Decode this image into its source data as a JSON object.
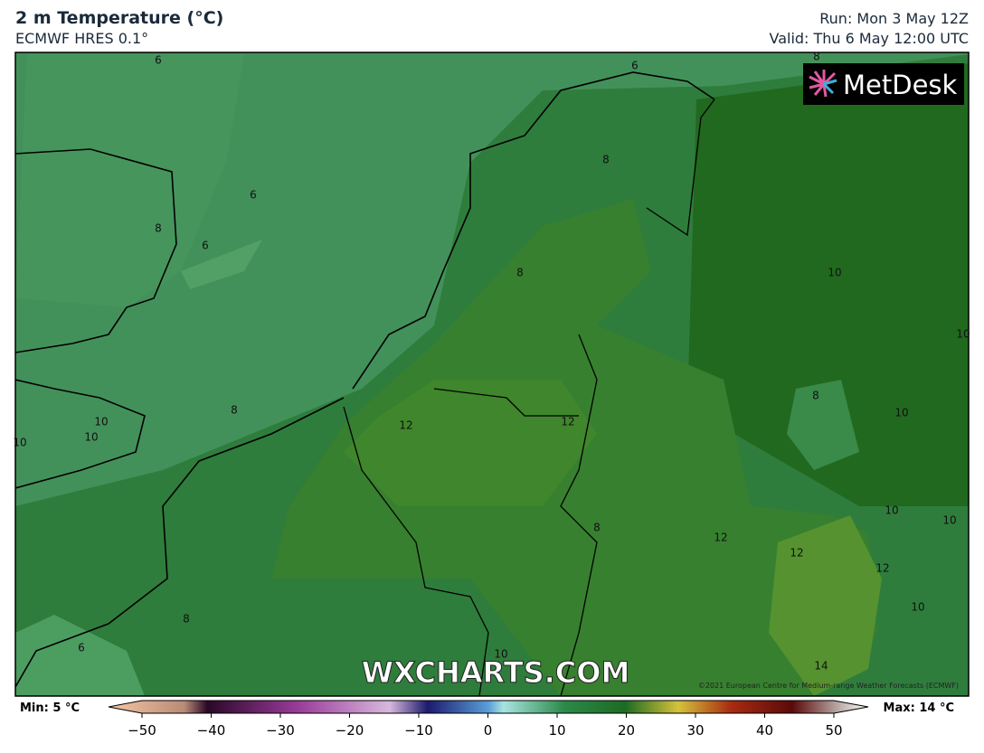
{
  "header": {
    "title": "2 m Temperature (°C)",
    "subtitle": "ECMWF HRES 0.1°",
    "run": "Run: Mon 3 May 12Z",
    "valid": "Valid: Thu 6 May 12:00 UTC"
  },
  "logo": "MetDesk",
  "watermark": "WXCHARTS.COM",
  "copyright": "©2021 European Centre for Medium-range Weather Forecasts (ECMWF)",
  "contour_labels": [
    6,
    6,
    8,
    8,
    6,
    8,
    6,
    8,
    10,
    10,
    8,
    10,
    8,
    10,
    12,
    12,
    10,
    10,
    10,
    10,
    8,
    12,
    12,
    12,
    8,
    10,
    6,
    10,
    14
  ],
  "colorbar": {
    "min_label": "Min: 5 °C",
    "max_label": "Max: 14 °C",
    "ticks": [
      {
        "value": -50,
        "label": "−50"
      },
      {
        "value": -40,
        "label": "−40"
      },
      {
        "value": -30,
        "label": "−30"
      },
      {
        "value": -20,
        "label": "−20"
      },
      {
        "value": -10,
        "label": "−10"
      },
      0,
      10,
      20,
      30,
      40,
      50
    ]
  }
}
